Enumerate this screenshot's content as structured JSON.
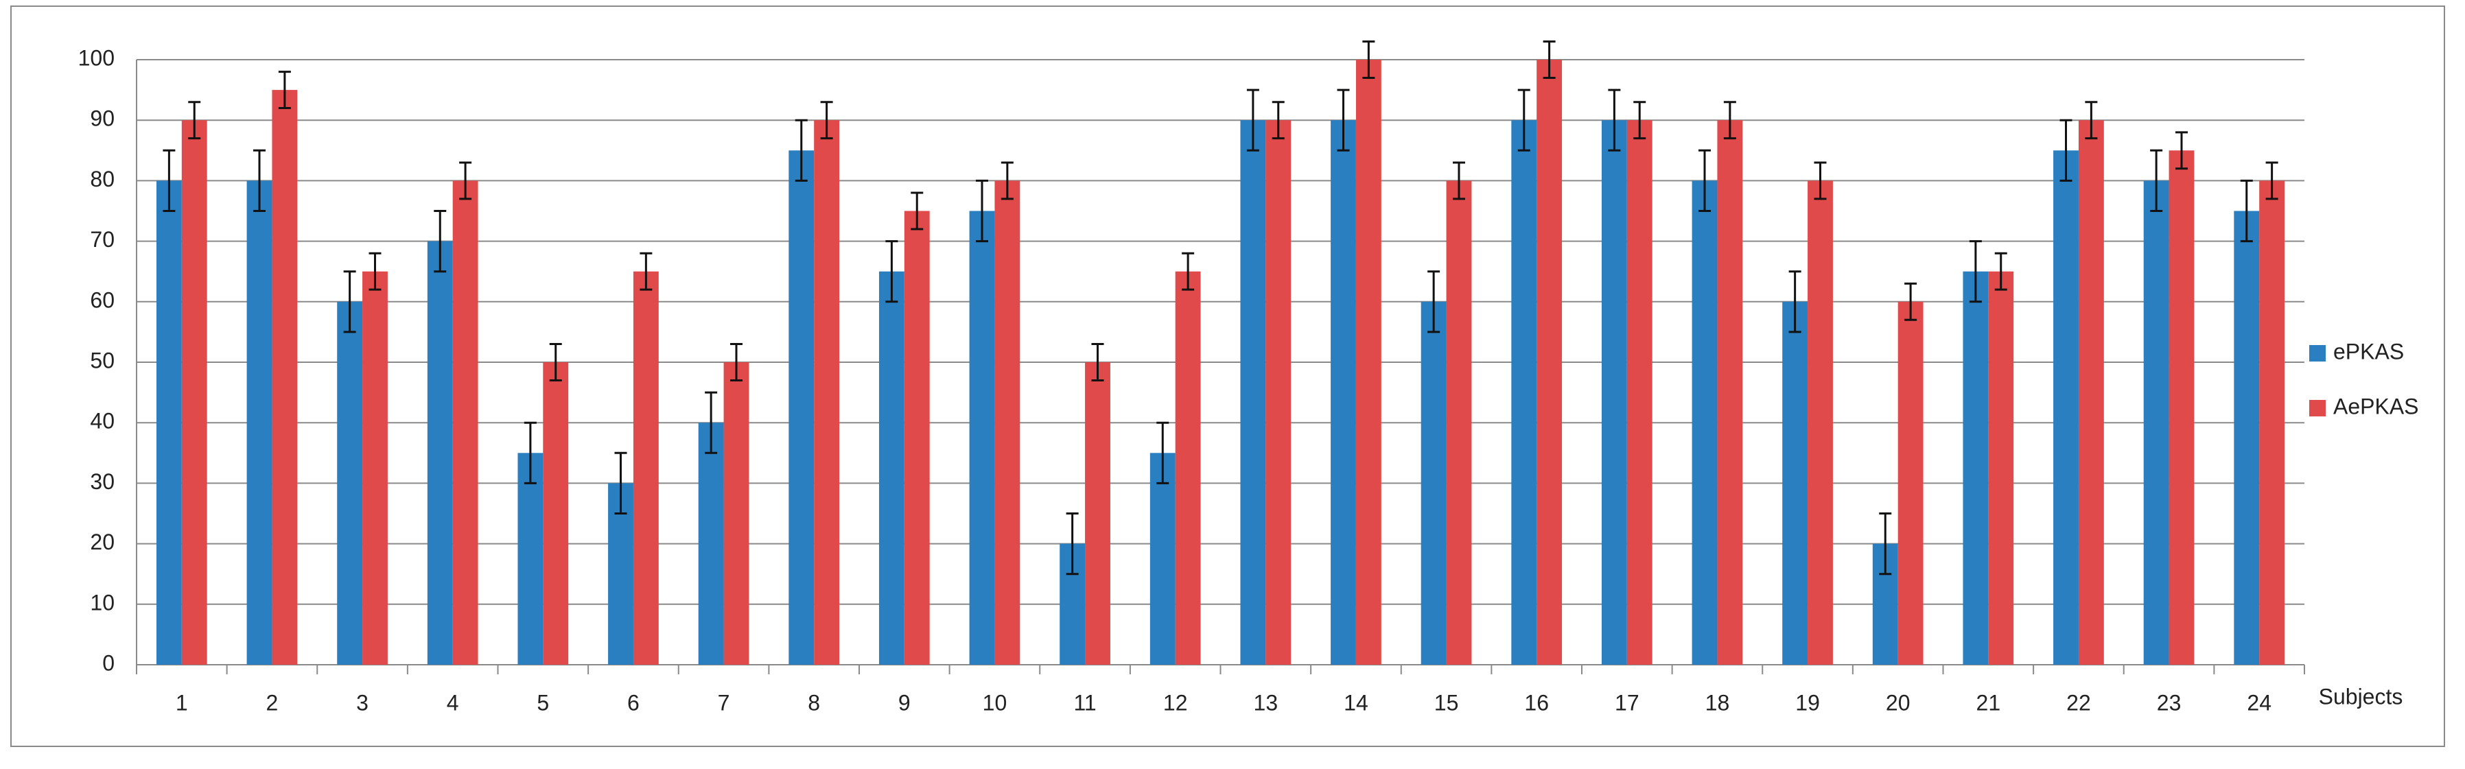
{
  "chart_data": {
    "type": "bar",
    "x_label": "Subjects",
    "categories": [
      "1",
      "2",
      "3",
      "4",
      "5",
      "6",
      "7",
      "8",
      "9",
      "10",
      "11",
      "12",
      "13",
      "14",
      "15",
      "16",
      "17",
      "18",
      "19",
      "20",
      "21",
      "22",
      "23",
      "24"
    ],
    "series": [
      {
        "name": "ePKAS",
        "color": "#2a7fc0",
        "values": [
          80,
          80,
          60,
          70,
          35,
          30,
          40,
          85,
          65,
          75,
          20,
          35,
          90,
          90,
          60,
          90,
          90,
          80,
          60,
          20,
          65,
          85,
          80,
          75
        ],
        "errors": [
          5,
          5,
          5,
          5,
          5,
          5,
          5,
          5,
          5,
          5,
          5,
          5,
          5,
          5,
          5,
          5,
          5,
          5,
          5,
          5,
          5,
          5,
          5,
          5
        ]
      },
      {
        "name": "AePKAS",
        "color": "#e04a4a",
        "values": [
          90,
          95,
          65,
          80,
          50,
          65,
          50,
          90,
          75,
          80,
          50,
          65,
          90,
          100,
          80,
          100,
          90,
          90,
          80,
          60,
          65,
          90,
          85,
          80
        ],
        "errors": [
          3,
          3,
          3,
          3,
          3,
          3,
          3,
          3,
          3,
          3,
          3,
          3,
          3,
          3,
          3,
          3,
          3,
          3,
          3,
          3,
          3,
          3,
          3,
          3
        ]
      }
    ],
    "ylim": [
      0,
      100
    ],
    "yticks": [
      0,
      10,
      20,
      30,
      40,
      50,
      60,
      70,
      80,
      90,
      100
    ],
    "grid": true,
    "legend": "right"
  }
}
